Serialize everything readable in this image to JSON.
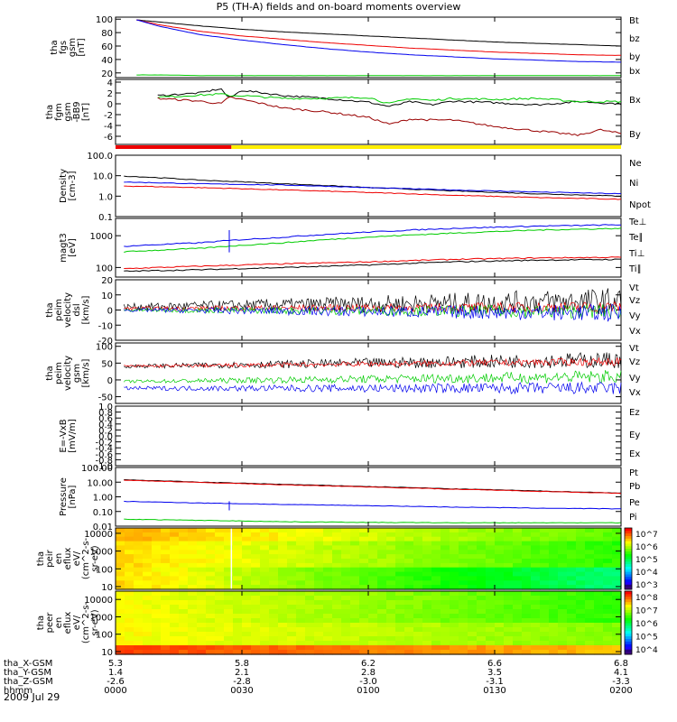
{
  "title": "P5 (TH-A) fields and on-board moments overview",
  "date_label": "2009 Jul 29",
  "colors": {
    "black": "#000000",
    "red": "#ee0000",
    "green": "#00cc00",
    "blue": "#0000ee",
    "yellow": "#ffee00"
  },
  "chart_data": [
    {
      "type": "line",
      "ylabel": [
        "tha",
        "fgs",
        "gsm",
        "[nT]"
      ],
      "ylim": [
        13,
        103
      ],
      "ticks": [
        20,
        40,
        60,
        80,
        100
      ],
      "tick_labels": [
        "20",
        "40",
        "60",
        "80",
        "100"
      ],
      "series": [
        {
          "name": "Bt",
          "color": "#000000",
          "x": [
            5,
            10,
            20,
            30,
            40,
            50,
            60,
            70,
            80,
            90,
            100,
            110,
            120
          ],
          "y": [
            99,
            96,
            90,
            85,
            81,
            78,
            75,
            72,
            69,
            66,
            64,
            62,
            60
          ]
        },
        {
          "name": "bz",
          "color": "#ee0000",
          "x": [
            5,
            10,
            20,
            30,
            40,
            50,
            60,
            70,
            80,
            90,
            100,
            110,
            120
          ],
          "y": [
            99,
            92,
            82,
            75,
            70,
            65,
            61,
            57,
            54,
            51,
            49,
            47,
            46
          ]
        },
        {
          "name": "by",
          "color": "#00cc00",
          "x": [
            5,
            10,
            20,
            30,
            40,
            50,
            60,
            70,
            80,
            90,
            100,
            110,
            120
          ],
          "y": [
            17,
            17,
            16,
            16,
            16,
            16,
            16,
            16,
            16,
            16,
            16,
            16,
            16
          ]
        },
        {
          "name": "bx",
          "color": "#0000ee",
          "x": [
            5,
            10,
            20,
            30,
            40,
            50,
            60,
            70,
            80,
            90,
            100,
            110,
            120
          ],
          "y": [
            99,
            90,
            77,
            69,
            62,
            56,
            51,
            47,
            44,
            41,
            39,
            37,
            36
          ]
        }
      ]
    },
    {
      "type": "line",
      "ylabel": [
        "tha",
        "fgm",
        "gsm",
        "-BB9",
        "[nT]"
      ],
      "ylim": [
        -7.5,
        4.5
      ],
      "ticks": [
        -6,
        -4,
        -2,
        0,
        2,
        4
      ],
      "tick_labels": [
        "-6",
        "-4",
        "-2",
        "0",
        "2",
        "4"
      ],
      "series": [
        {
          "name": "Bx",
          "color": "#000000",
          "x": [
            10,
            20,
            25,
            27,
            30,
            40,
            50,
            60,
            65,
            70,
            75,
            80,
            90,
            100,
            110,
            120
          ],
          "y": [
            1.5,
            2.0,
            2.8,
            1.0,
            2.5,
            1.5,
            1.0,
            0.3,
            -0.5,
            0.4,
            -0.2,
            0.5,
            0.2,
            -0.2,
            0.4,
            0.0
          ]
        },
        {
          "name": "By",
          "color": "#00cc00",
          "x": [
            10,
            20,
            25,
            27,
            30,
            40,
            50,
            60,
            65,
            70,
            75,
            80,
            90,
            100,
            110,
            120
          ],
          "y": [
            1.2,
            1.6,
            1.8,
            1.5,
            1.5,
            1.0,
            1.0,
            1.2,
            0.0,
            1.0,
            0.6,
            1.0,
            0.8,
            1.0,
            0.4,
            0.4
          ]
        },
        {
          "name": "Bz",
          "color": "#990000",
          "x": [
            10,
            20,
            25,
            27,
            30,
            40,
            50,
            60,
            65,
            70,
            75,
            80,
            90,
            100,
            110,
            115,
            120
          ],
          "y": [
            1.0,
            0.5,
            0.0,
            1.2,
            0.8,
            -0.8,
            -1.5,
            -2.5,
            -3.8,
            -2.8,
            -3.0,
            -3.0,
            -4.2,
            -5.0,
            -5.8,
            -4.8,
            -5.5
          ]
        }
      ],
      "status_bar": {
        "split_min": 27.5,
        "left_color": "#ee0000",
        "right_color": "#ffee00"
      }
    },
    {
      "type": "line",
      "log": true,
      "ylabel": [
        "Density",
        "[cm-3]"
      ],
      "ylim": [
        0.1,
        100
      ],
      "ticks": [
        0.1,
        1.0,
        10.0,
        100.0
      ],
      "tick_labels": [
        "0.1",
        "1.0",
        "10.0",
        "100.0"
      ],
      "series": [
        {
          "name": "Ne",
          "color": "#ee0000",
          "x": [
            0,
            20,
            40,
            60,
            80,
            100,
            120
          ],
          "y": [
            3.2,
            2.6,
            2.0,
            1.5,
            1.1,
            0.85,
            0.7
          ]
        },
        {
          "name": "Ni",
          "color": "#000000",
          "x": [
            0,
            20,
            40,
            60,
            80,
            100,
            120
          ],
          "y": [
            10,
            6,
            4,
            2.6,
            1.8,
            1.3,
            1.0
          ]
        },
        {
          "name": "Npot",
          "color": "#0000ee",
          "x": [
            0,
            20,
            40,
            60,
            80,
            100,
            120
          ],
          "y": [
            5,
            4,
            3.5,
            2.6,
            2,
            1.6,
            1.3
          ]
        }
      ]
    },
    {
      "type": "line",
      "log": true,
      "ylabel": [
        "magt3",
        "[eV]"
      ],
      "ylim": [
        50,
        3500
      ],
      "ticks": [
        100,
        1000
      ],
      "tick_labels": [
        "100",
        "1000"
      ],
      "series": [
        {
          "name": "Te⊥",
          "color": "#ee0000",
          "x": [
            0,
            20,
            40,
            60,
            80,
            100,
            120
          ],
          "y": [
            90,
            110,
            130,
            150,
            180,
            200,
            210
          ]
        },
        {
          "name": "Te∥",
          "color": "#000000",
          "x": [
            0,
            20,
            40,
            60,
            80,
            100,
            120
          ],
          "y": [
            75,
            85,
            100,
            120,
            150,
            170,
            180
          ]
        },
        {
          "name": "Ti⊥",
          "color": "#0000ee",
          "x": [
            0,
            20,
            40,
            60,
            80,
            100,
            120
          ],
          "y": [
            450,
            600,
            900,
            1300,
            1700,
            2000,
            2200
          ]
        },
        {
          "name": "Ti∥",
          "color": "#00cc00",
          "x": [
            0,
            20,
            40,
            60,
            80,
            100,
            120
          ],
          "y": [
            300,
            400,
            600,
            900,
            1200,
            1500,
            1700
          ]
        }
      ]
    },
    {
      "type": "line",
      "ylabel": [
        "tha",
        "peim",
        "velocity",
        "dsl",
        "[km/s]"
      ],
      "ylim": [
        -20,
        20
      ],
      "ticks": [
        -20,
        -10,
        0,
        10,
        20
      ],
      "tick_labels": [
        "-20",
        "-10",
        "0",
        "10",
        "20"
      ],
      "series": [
        {
          "name": "Vt",
          "color": "#000000",
          "x": [
            0,
            120
          ],
          "y": [
            2,
            6
          ],
          "noise": [
            2,
            9
          ]
        },
        {
          "name": "Vz",
          "color": "#ee0000",
          "x": [
            0,
            120
          ],
          "y": [
            1,
            2
          ],
          "noise": [
            1,
            4
          ]
        },
        {
          "name": "Vy",
          "color": "#00cc00",
          "x": [
            0,
            120
          ],
          "y": [
            0,
            -1
          ],
          "noise": [
            1,
            5
          ]
        },
        {
          "name": "Vx",
          "color": "#0000ee",
          "x": [
            0,
            120
          ],
          "y": [
            0,
            -2
          ],
          "noise": [
            1,
            6
          ]
        }
      ]
    },
    {
      "type": "line",
      "ylabel": [
        "tha",
        "peim",
        "velocity",
        "gsm",
        "[km/s]"
      ],
      "ylim": [
        -70,
        110
      ],
      "ticks": [
        -50,
        0,
        50,
        100
      ],
      "tick_labels": [
        "-50",
        "0",
        "50",
        "100"
      ],
      "series": [
        {
          "name": "Vt",
          "color": "#000000",
          "x": [
            0,
            120
          ],
          "y": [
            40,
            60
          ],
          "noise": [
            5,
            25
          ]
        },
        {
          "name": "Vz",
          "color": "#ee0000",
          "x": [
            0,
            120
          ],
          "y": [
            40,
            55
          ],
          "noise": [
            4,
            12
          ]
        },
        {
          "name": "Vy",
          "color": "#00cc00",
          "x": [
            0,
            120
          ],
          "y": [
            -5,
            10
          ],
          "noise": [
            4,
            20
          ]
        },
        {
          "name": "Vx",
          "color": "#0000ee",
          "x": [
            0,
            120
          ],
          "y": [
            -25,
            -25
          ],
          "noise": [
            5,
            20
          ]
        }
      ]
    },
    {
      "type": "line",
      "ylabel": [
        "E=-VxB",
        "[mV/m]"
      ],
      "ylim": [
        -1.0,
        1.0
      ],
      "ticks": [
        -1.0,
        -0.8,
        -0.6,
        -0.4,
        -0.2,
        0.0,
        0.2,
        0.4,
        0.6,
        0.8,
        1.0
      ],
      "tick_labels": [
        "-1.0",
        "-0.8",
        "-0.6",
        "-0.4",
        "-0.2",
        "0.0",
        "0.2",
        "0.4",
        "0.6",
        "0.8",
        "1.0"
      ],
      "series": [
        {
          "name": "Ez",
          "color": "#ee0000",
          "x": [],
          "y": []
        },
        {
          "name": "Ey",
          "color": "#00cc00",
          "x": [],
          "y": []
        },
        {
          "name": "Ex",
          "color": "#0000ee",
          "x": [],
          "y": []
        }
      ]
    },
    {
      "type": "line",
      "log": true,
      "ylabel": [
        "Pressure",
        "[nPa]"
      ],
      "ylim": [
        0.01,
        100
      ],
      "ticks": [
        0.01,
        0.1,
        1.0,
        10.0,
        100.0
      ],
      "tick_labels": [
        "0.01",
        "0.10",
        "1.00",
        "10.00",
        "100.00"
      ],
      "series": [
        {
          "name": "Pt",
          "color": "#000000",
          "x": [
            0,
            20,
            40,
            60,
            80,
            100,
            120
          ],
          "y": [
            15,
            10,
            7,
            5,
            3.5,
            2.5,
            1.8
          ]
        },
        {
          "name": "Pb",
          "color": "#ee0000",
          "x": [
            0,
            20,
            40,
            60,
            80,
            100,
            120
          ],
          "y": [
            14,
            9.5,
            6.5,
            4.7,
            3.3,
            2.4,
            1.7
          ]
        },
        {
          "name": "Pe",
          "color": "#00cc00",
          "x": [
            0,
            20,
            40,
            60,
            80,
            100,
            120
          ],
          "y": [
            0.03,
            0.025,
            0.02,
            0.018,
            0.017,
            0.017,
            0.017
          ]
        },
        {
          "name": "Pi",
          "color": "#0000ee",
          "x": [
            0,
            20,
            40,
            60,
            80,
            100,
            120
          ],
          "y": [
            0.5,
            0.38,
            0.3,
            0.25,
            0.2,
            0.17,
            0.15
          ]
        }
      ]
    },
    {
      "type": "heatmap",
      "log": true,
      "ylabel": [
        "tha",
        "peir",
        "en",
        "eflux",
        "eV/",
        "(cm^2-s-",
        "sr-eV)"
      ],
      "ylim": [
        7,
        20000
      ],
      "ticks": [
        10,
        100,
        1000,
        10000
      ],
      "tick_labels": [
        "10",
        "100",
        "1000",
        "10000"
      ],
      "colorbar": {
        "tick_labels": [
          "10^3",
          "10^4",
          "10^5",
          "10^6",
          "10^7"
        ],
        "range_exp": [
          2.5,
          7.5
        ]
      }
    },
    {
      "type": "heatmap",
      "log": true,
      "ylabel": [
        "tha",
        "peer",
        "en",
        "eflux",
        "eV/",
        "(cm^2-s-",
        "sr-eV)"
      ],
      "ylim": [
        7,
        30000
      ],
      "ticks": [
        10,
        100,
        1000,
        10000
      ],
      "tick_labels": [
        "10",
        "100",
        "1000",
        "10000"
      ],
      "colorbar": {
        "tick_labels": [
          "10^4",
          "10^5",
          "10^6",
          "10^7",
          "10^8"
        ],
        "range_exp": [
          3.5,
          8.5
        ]
      }
    }
  ],
  "x_axis": {
    "rows": [
      {
        "label": "tha_X-GSM",
        "values": [
          "5.3",
          "5.8",
          "6.2",
          "6.6",
          "6.8"
        ]
      },
      {
        "label": "tha_Y-GSM",
        "values": [
          "1.4",
          "2.1",
          "2.8",
          "3.5",
          "4.1"
        ]
      },
      {
        "label": "tha_Z-GSM",
        "values": [
          "-2.6",
          "-2.8",
          "-3.0",
          "-3.1",
          "-3.3"
        ]
      },
      {
        "label": "hhmm",
        "values": [
          "0000",
          "0030",
          "0100",
          "0130",
          "0200"
        ]
      }
    ]
  }
}
